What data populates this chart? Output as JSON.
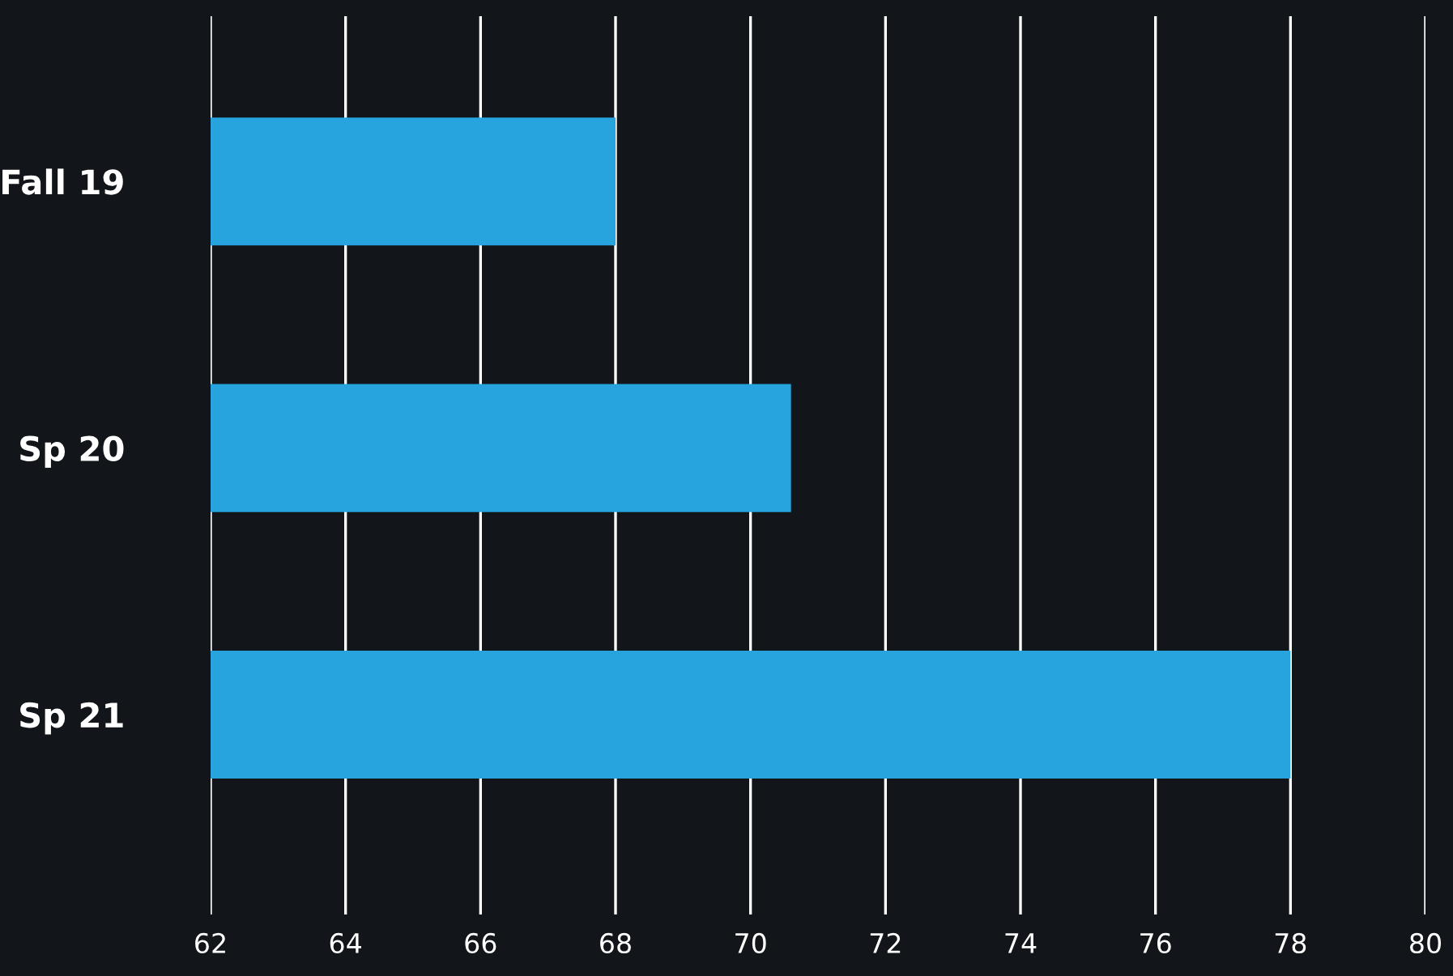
{
  "chart_data": {
    "type": "bar",
    "orientation": "horizontal",
    "categories": [
      "Fall 19",
      "Sp 20",
      "Sp 21"
    ],
    "values": [
      68,
      70.6,
      78
    ],
    "color": "#27a3dd",
    "xlim": [
      62,
      80
    ],
    "xticks": [
      62,
      64,
      66,
      68,
      70,
      72,
      74,
      76,
      78,
      80
    ],
    "grid": "x"
  }
}
